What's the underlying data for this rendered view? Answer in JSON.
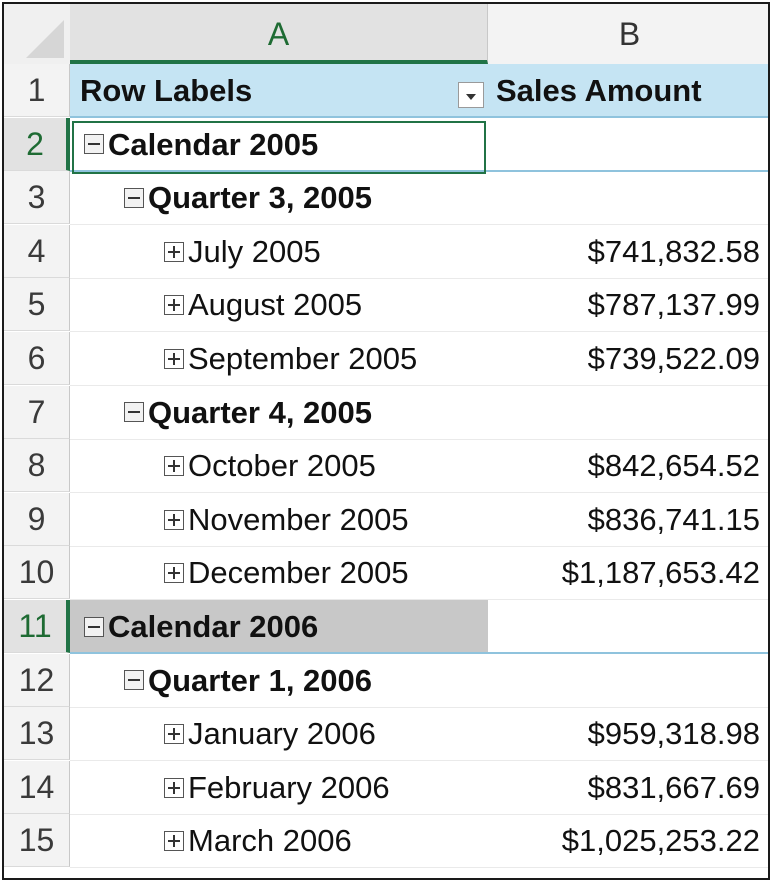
{
  "columns": {
    "a": "A",
    "b": "B"
  },
  "rows": [
    {
      "num": "1",
      "label": "Row Labels",
      "value": "Sales Amount",
      "kind": "header"
    },
    {
      "num": "2",
      "label": "Calendar 2005",
      "value": "",
      "kind": "year",
      "toggle": "minus"
    },
    {
      "num": "3",
      "label": "Quarter 3, 2005",
      "value": "",
      "kind": "quarter",
      "toggle": "minus"
    },
    {
      "num": "4",
      "label": "July 2005",
      "value": "$741,832.58",
      "kind": "month",
      "toggle": "plus"
    },
    {
      "num": "5",
      "label": "August 2005",
      "value": "$787,137.99",
      "kind": "month",
      "toggle": "plus"
    },
    {
      "num": "6",
      "label": "September 2005",
      "value": "$739,522.09",
      "kind": "month",
      "toggle": "plus"
    },
    {
      "num": "7",
      "label": "Quarter 4, 2005",
      "value": "",
      "kind": "quarter",
      "toggle": "minus"
    },
    {
      "num": "8",
      "label": "October 2005",
      "value": "$842,654.52",
      "kind": "month",
      "toggle": "plus"
    },
    {
      "num": "9",
      "label": "November 2005",
      "value": "$836,741.15",
      "kind": "month",
      "toggle": "plus"
    },
    {
      "num": "10",
      "label": "December 2005",
      "value": "$1,187,653.42",
      "kind": "month",
      "toggle": "plus"
    },
    {
      "num": "11",
      "label": "Calendar 2006",
      "value": "",
      "kind": "year",
      "toggle": "minus"
    },
    {
      "num": "12",
      "label": "Quarter 1, 2006",
      "value": "",
      "kind": "quarter",
      "toggle": "minus"
    },
    {
      "num": "13",
      "label": "January 2006",
      "value": "$959,318.98",
      "kind": "month",
      "toggle": "plus"
    },
    {
      "num": "14",
      "label": "February 2006",
      "value": "$831,667.69",
      "kind": "month",
      "toggle": "plus"
    },
    {
      "num": "15",
      "label": "March 2006",
      "value": "$1,025,253.22",
      "kind": "month",
      "toggle": "plus"
    }
  ],
  "icons": {
    "expand": "plus-box-icon",
    "collapse": "minus-box-icon",
    "filter": "dropdown-arrow-icon"
  },
  "colors": {
    "pivot_header": "#c5e4f3",
    "selection": "#217346",
    "highlight_row": "#c8c8c8"
  }
}
